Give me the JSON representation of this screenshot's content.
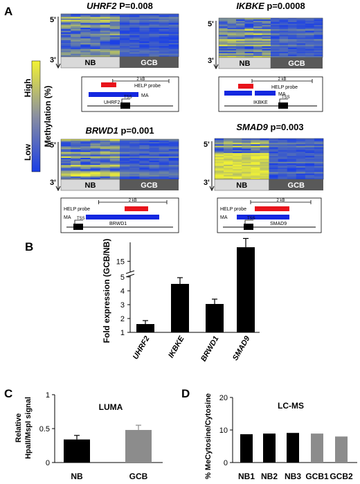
{
  "panels": {
    "A": "A",
    "B": "B",
    "C": "C",
    "D": "D"
  },
  "colorbar": {
    "high": "High",
    "low": "Low",
    "label": "Methylation (%)"
  },
  "heatmaps": [
    {
      "gene": "UHRF2",
      "pvalue": "P=0.008",
      "groups": [
        "NB",
        "GCB"
      ],
      "axis_top": "5'",
      "axis_bottom": "3'",
      "diagram": {
        "scale": "2 kB",
        "probe": "HELP probe",
        "ma": "MA",
        "tss": "TSS",
        "gene": "UHRF2"
      }
    },
    {
      "gene": "IKBKE",
      "pvalue": "p=0.0008",
      "groups": [
        "NB",
        "GCB"
      ],
      "axis_top": "5'",
      "axis_bottom": "3'",
      "diagram": {
        "scale": "2 kB",
        "probe": "HELP probe",
        "ma": "MA",
        "tss": "TSS",
        "gene": "IKBKE"
      }
    },
    {
      "gene": "BRWD1",
      "pvalue": "p=0.001",
      "groups": [
        "NB",
        "GCB"
      ],
      "axis_top": "5'",
      "axis_bottom": "3'",
      "diagram": {
        "scale": "2 kB",
        "probe": "HELP probe",
        "ma": "MA",
        "tss": "TSS",
        "gene": "BRWD1"
      }
    },
    {
      "gene": "SMAD9",
      "pvalue": "p=0.003",
      "groups": [
        "NB",
        "GCB"
      ],
      "axis_top": "5'",
      "axis_bottom": "3'",
      "diagram": {
        "scale": "2 kB",
        "probe": "HELP probe",
        "ma": "MA",
        "tss": "TSS",
        "gene": "SMAD9"
      }
    }
  ],
  "colors": {
    "heat_low": "#1a3fe6",
    "heat_high": "#f2f233",
    "probe": "#e8141c",
    "ma": "#1428e0",
    "nb_box": "#d9d9d9",
    "gcb_box": "#595959",
    "bar_black": "#000000",
    "bar_gray": "#8c8c8c"
  },
  "chart_data": [
    {
      "type": "bar",
      "ylabel": "Fold expression (GCB/NB)",
      "categories": [
        "UHRF2",
        "IKBKE",
        "BRWD1",
        "SMAD9"
      ],
      "values": [
        1.6,
        4.5,
        3.05,
        16.6
      ],
      "errors": [
        0.25,
        0.45,
        0.35,
        1.0
      ],
      "ytick_labels": [
        "1",
        "2",
        "3",
        "4",
        "5",
        "15"
      ],
      "axis_break": true
    },
    {
      "type": "bar",
      "title": "LUMA",
      "ylabel": "Relative HpaII/MspI signal",
      "categories": [
        "NB",
        "GCB"
      ],
      "values": [
        0.34,
        0.48
      ],
      "errors": [
        0.06,
        0.07
      ],
      "ylim": [
        0,
        1
      ],
      "yticks": [
        "0",
        "0.5",
        "1"
      ]
    },
    {
      "type": "bar",
      "title": "LC-MS",
      "ylabel": "% MeCytosine/Cytosine",
      "categories": [
        "NB1",
        "NB2",
        "NB3",
        "GCB1",
        "GCB2"
      ],
      "values": [
        8.7,
        8.9,
        9.1,
        8.9,
        8.0
      ],
      "ylim": [
        0,
        20
      ],
      "yticks": [
        "0",
        "10",
        "20"
      ]
    }
  ]
}
